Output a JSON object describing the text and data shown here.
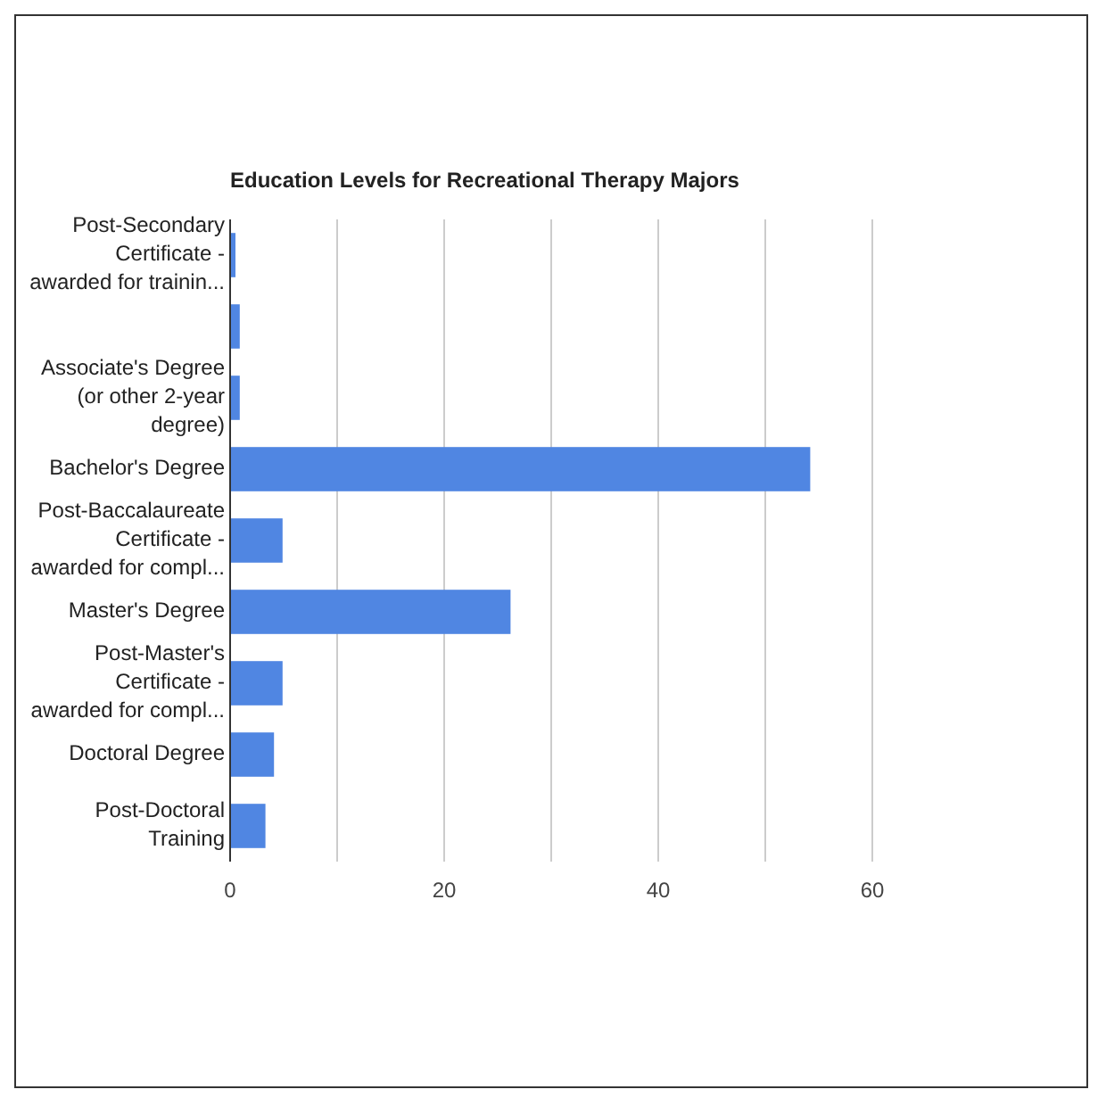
{
  "chart_data": {
    "type": "bar",
    "orientation": "horizontal",
    "title": "Education Levels for Recreational Therapy Majors",
    "categories": [
      "Post-Secondary\nCertificate -\nawarded for trainin...",
      null,
      "Associate's Degree\n(or other 2-year\ndegree)",
      "Bachelor's Degree",
      "Post-Baccalaureate\nCertificate -\nawarded for compl...",
      "Master's Degree",
      "Post-Master's\nCertificate -\nawarded for compl...",
      "Doctoral Degree",
      "Post-Doctoral\nTraining"
    ],
    "values": [
      0.5,
      0.9,
      0.9,
      54.2,
      4.9,
      26.2,
      4.9,
      4.1,
      3.3
    ],
    "color": "#5086e2",
    "xlim": [
      0,
      60
    ],
    "xticks": [
      0,
      {
        "value": 10,
        "label": null
      },
      20,
      {
        "value": 30,
        "label": null
      },
      40,
      {
        "value": 50,
        "label": null
      },
      60
    ],
    "grid": "x"
  }
}
